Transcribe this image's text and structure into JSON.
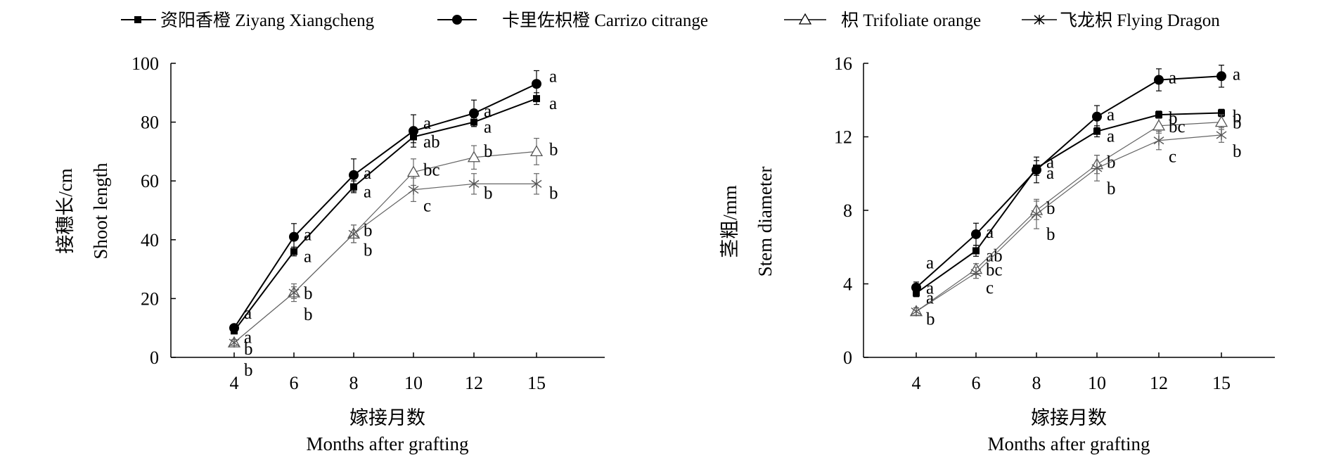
{
  "legend": [
    {
      "marker": "square",
      "label": "资阳香橙 Ziyang Xiangcheng"
    },
    {
      "marker": "circle",
      "label": "卡里佐枳橙 Carrizo citrange"
    },
    {
      "marker": "triangle",
      "label": "枳 Trifoliate orange"
    },
    {
      "marker": "star",
      "label": "飞龙枳 Flying Dragon"
    }
  ],
  "chart_data": [
    {
      "type": "line",
      "x_axis_type": "category",
      "categories": [
        "4",
        "6",
        "8",
        "10",
        "12",
        "15"
      ],
      "ylabel": [
        "接穗长/cm",
        "Shoot length"
      ],
      "xlabel": [
        "嫁接月数",
        "Months after grafting"
      ],
      "ylim": [
        0,
        100
      ],
      "yticks": [
        0,
        20,
        40,
        60,
        80,
        100
      ],
      "series": [
        {
          "name": "资阳香橙 Ziyang Xiangcheng",
          "marker": "square",
          "values": [
            9,
            36,
            58,
            75,
            80,
            88
          ],
          "error": [
            1,
            1.5,
            2,
            2,
            1.5,
            2
          ],
          "letters": [
            "a",
            "a",
            "a",
            "ab",
            "a",
            "a"
          ]
        },
        {
          "name": "卡里佐枳橙 Carrizo citrange",
          "marker": "circle",
          "values": [
            10,
            41,
            62,
            77,
            83,
            93
          ],
          "error": [
            1,
            4.5,
            5.5,
            5.5,
            4.5,
            4.5
          ],
          "letters": [
            "a",
            "a",
            "a",
            "a",
            "a",
            "a"
          ]
        },
        {
          "name": "枳 Trifoliate orange",
          "marker": "triangle",
          "values": [
            5,
            22,
            42,
            63,
            68,
            70
          ],
          "error": [
            1,
            2,
            3,
            4.5,
            4,
            4.5
          ],
          "letters": [
            "b",
            "b",
            "b",
            "bc",
            "b",
            "b"
          ]
        },
        {
          "name": "飞龙枳 Flying Dragon",
          "marker": "star",
          "values": [
            5,
            22,
            42,
            57,
            59,
            59
          ],
          "error": [
            1,
            3,
            3,
            4,
            3.5,
            3.5
          ],
          "letters": [
            "b",
            "b",
            "b",
            "c",
            "b",
            "b"
          ]
        }
      ]
    },
    {
      "type": "line",
      "x_axis_type": "category",
      "categories": [
        "4",
        "6",
        "8",
        "10",
        "12",
        "15"
      ],
      "ylabel": [
        "茎粗/mm",
        "Stem diameter"
      ],
      "xlabel": [
        "嫁接月数",
        "Months after grafting"
      ],
      "ylim": [
        0,
        16
      ],
      "yticks": [
        0,
        4,
        8,
        12,
        16
      ],
      "series": [
        {
          "name": "资阳香橙 Ziyang Xiangcheng",
          "marker": "square",
          "values": [
            3.5,
            5.8,
            10.3,
            12.3,
            13.2,
            13.3
          ],
          "error": [
            0.2,
            0.3,
            0.4,
            0.3,
            0.2,
            0.2
          ],
          "letters": [
            "a",
            "ab",
            "a",
            "a",
            "b",
            "b"
          ]
        },
        {
          "name": "卡里佐枳橙 Carrizo citrange",
          "marker": "circle",
          "values": [
            3.8,
            6.7,
            10.2,
            13.1,
            15.1,
            15.3
          ],
          "error": [
            0.3,
            0.6,
            0.7,
            0.6,
            0.6,
            0.6
          ],
          "letters": [
            "a",
            "a",
            "a",
            "a",
            "a",
            "a"
          ]
        },
        {
          "name": "枳 Trifoliate orange",
          "marker": "triangle",
          "values": [
            2.5,
            4.8,
            8.0,
            10.5,
            12.6,
            12.8
          ],
          "error": [
            0.2,
            0.3,
            0.5,
            0.5,
            0.4,
            0.4
          ],
          "letters": [
            "a",
            "bc",
            "b",
            "b",
            "bc",
            "b"
          ]
        },
        {
          "name": "飞龙枳 Flying Dragon",
          "marker": "star",
          "values": [
            2.5,
            4.6,
            7.8,
            10.3,
            11.8,
            12.1
          ],
          "error": [
            0.2,
            0.3,
            0.8,
            0.7,
            0.5,
            0.4
          ],
          "letters": [
            "b",
            "c",
            "b",
            "b",
            "c",
            "b"
          ]
        }
      ]
    }
  ]
}
